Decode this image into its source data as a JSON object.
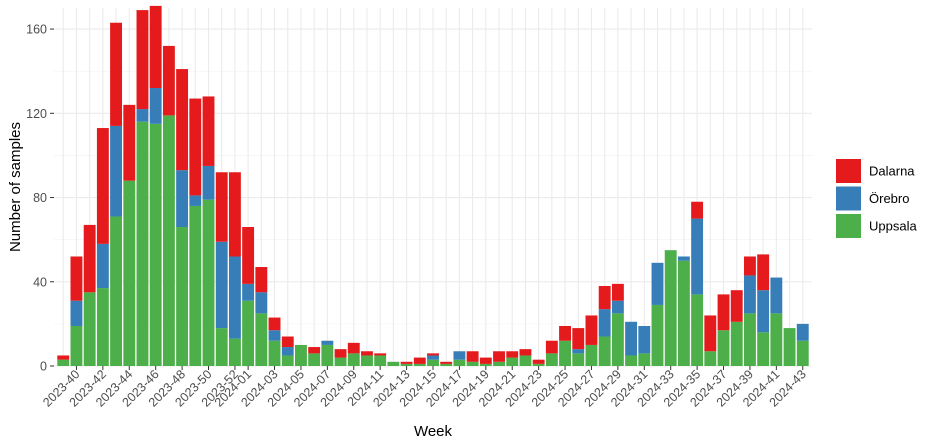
{
  "chart_data": {
    "type": "bar",
    "stacked": true,
    "xlabel": "Week",
    "ylabel": "Number of samples",
    "ylim": [
      0,
      170
    ],
    "yticks": [
      0,
      40,
      80,
      120,
      160
    ],
    "grid": true,
    "legend_position": "right",
    "categories": [
      "2023-39",
      "2023-40",
      "2023-41",
      "2023-42",
      "2023-43",
      "2023-44",
      "2023-45",
      "2023-46",
      "2023-47",
      "2023-48",
      "2023-49",
      "2023-50",
      "2023-51",
      "2023-52",
      "2024-01",
      "2024-02",
      "2024-03",
      "2024-04",
      "2024-05",
      "2024-06",
      "2024-07",
      "2024-08",
      "2024-09",
      "2024-10",
      "2024-11",
      "2024-12",
      "2024-13",
      "2024-14",
      "2024-15",
      "2024-16",
      "2024-17",
      "2024-18",
      "2024-19",
      "2024-20",
      "2024-21",
      "2024-22",
      "2024-23",
      "2024-24",
      "2024-25",
      "2024-26",
      "2024-27",
      "2024-28",
      "2024-29",
      "2024-30",
      "2024-31",
      "2024-32",
      "2024-33",
      "2024-34",
      "2024-35",
      "2024-36",
      "2024-37",
      "2024-38",
      "2024-39",
      "2024-40",
      "2024-41",
      "2024-42",
      "2024-43"
    ],
    "xtick_labels": [
      "2023-40",
      "2023-42",
      "2023-44",
      "2023-46",
      "2023-48",
      "2023-50",
      "2023-52",
      "2024-01",
      "2024-03",
      "2024-05",
      "2024-07",
      "2024-09",
      "2024-11",
      "2024-13",
      "2024-15",
      "2024-17",
      "2024-19",
      "2024-21",
      "2024-23",
      "2024-25",
      "2024-27",
      "2024-29",
      "2024-31",
      "2024-33",
      "2024-35",
      "2024-37",
      "2024-39",
      "2024-41",
      "2024-43"
    ],
    "series": [
      {
        "name": "Uppsala",
        "color": "#4daf4a",
        "values": [
          3,
          19,
          35,
          37,
          71,
          88,
          116,
          115,
          119,
          66,
          76,
          79,
          18,
          13,
          31,
          25,
          12,
          5,
          10,
          6,
          10,
          4,
          6,
          5,
          5,
          2,
          1,
          1,
          3,
          1,
          3,
          2,
          1,
          2,
          4,
          5,
          1,
          6,
          12,
          6,
          10,
          14,
          25,
          5,
          6,
          29,
          55,
          50,
          34,
          7,
          17,
          21,
          25,
          16,
          25,
          18,
          12
        ]
      },
      {
        "name": "Örebro",
        "color": "#377eb8",
        "values": [
          0,
          12,
          0,
          21,
          43,
          0,
          6,
          17,
          0,
          27,
          5,
          16,
          41,
          39,
          8,
          10,
          5,
          4,
          0,
          0,
          2,
          0,
          0,
          0,
          0,
          0,
          0,
          0,
          2,
          0,
          4,
          0,
          0,
          0,
          0,
          0,
          0,
          0,
          0,
          2,
          0,
          13,
          6,
          16,
          13,
          20,
          0,
          2,
          36,
          0,
          0,
          0,
          18,
          20,
          17,
          0,
          8
        ]
      },
      {
        "name": "Dalarna",
        "color": "#e41a1c",
        "values": [
          2,
          21,
          32,
          55,
          49,
          36,
          47,
          39,
          33,
          48,
          46,
          33,
          33,
          40,
          27,
          12,
          6,
          5,
          0,
          3,
          0,
          4,
          5,
          2,
          1,
          0,
          1,
          3,
          1,
          1,
          0,
          5,
          3,
          5,
          3,
          3,
          2,
          6,
          7,
          10,
          14,
          11,
          8,
          0,
          0,
          0,
          0,
          0,
          8,
          17,
          17,
          15,
          9,
          17,
          0,
          0,
          0
        ]
      }
    ],
    "legend_order": [
      "Dalarna",
      "Örebro",
      "Uppsala"
    ]
  }
}
